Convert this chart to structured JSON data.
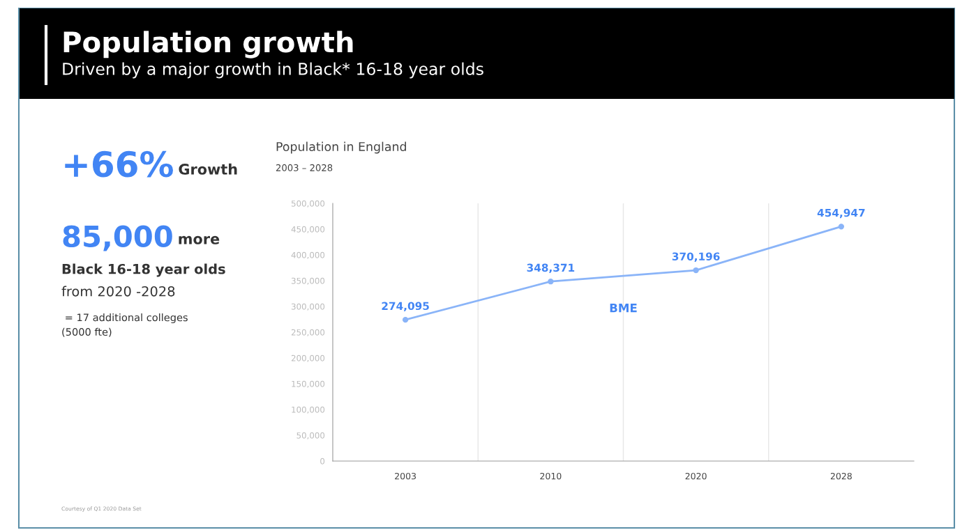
{
  "chart_data": [
    {
      "type": "other",
      "title": "Population growth",
      "subtitle": "Driven by a major growth in Black* 16-18 year olds",
      "annotations": [
        "+66%",
        "Growth",
        "85,000",
        "more",
        "Black 16-18 year olds",
        "from 2020 -2028",
        " = 17 additional colleges\n(5000 fte)",
        "Courtesy of Q1 2020 Data Set"
      ]
    },
    {
      "type": "line",
      "title": "Population in England",
      "subtitle": "2003 – 2028",
      "categories": [
        "2003",
        "2010",
        "2020",
        "2028"
      ],
      "series": [
        {
          "name": "BME",
          "color": "#8ab4f8",
          "values": [
            274095,
            348371,
            370196,
            454947
          ],
          "value_labels": [
            "274,095",
            "348,371",
            "370,196",
            "454,947"
          ]
        }
      ],
      "ylim": [
        0,
        500000
      ],
      "yticks": [
        0,
        {
          "value": 50000,
          "label": "50,000"
        },
        {
          "value": 100000,
          "label": "100,000"
        },
        {
          "value": 150000,
          "label": "150,000"
        },
        {
          "value": 200000,
          "label": "200,000"
        },
        {
          "value": 250000,
          "label": "250,000"
        },
        {
          "value": 300000,
          "label": "300,000"
        },
        {
          "value": 350000,
          "label": "350,000"
        },
        {
          "value": 400000,
          "label": "400,000"
        },
        {
          "value": 450000,
          "label": "450,000"
        },
        {
          "value": 500000,
          "label": "500,000"
        }
      ],
      "grid": "x",
      "marker": "circle",
      "line_style": "solid"
    }
  ]
}
